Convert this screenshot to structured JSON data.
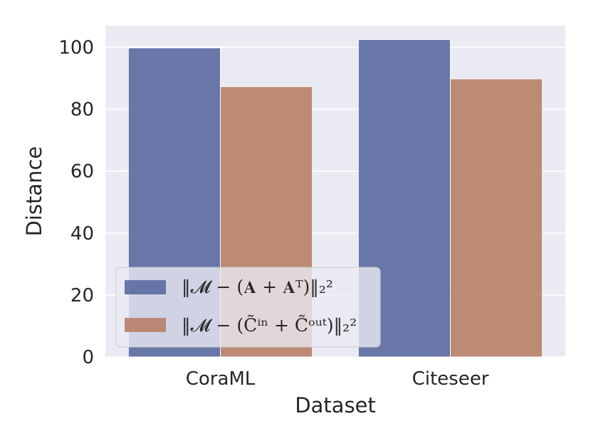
{
  "chart_data": {
    "type": "bar",
    "categories": [
      "CoraML",
      "Citeseer"
    ],
    "series": [
      {
        "name": "‖𝓜 − (𝐀 + 𝐀ᵀ)‖₂²",
        "values": [
          99.8,
          102.5
        ],
        "color": "#5a6aa0"
      },
      {
        "name": "‖𝓜 − (C̃ⁱⁿ + C̃ᵒᵘᵗ)‖₂²",
        "values": [
          87.3,
          89.8
        ],
        "color": "#b88068"
      }
    ],
    "title": "",
    "xlabel": "Dataset",
    "ylabel": "Distance",
    "ylim": [
      0,
      107
    ],
    "yticks": [
      0,
      20,
      40,
      60,
      80,
      100
    ],
    "grid": true,
    "legend_position": "lower-left",
    "background": "#eaeaf2"
  }
}
